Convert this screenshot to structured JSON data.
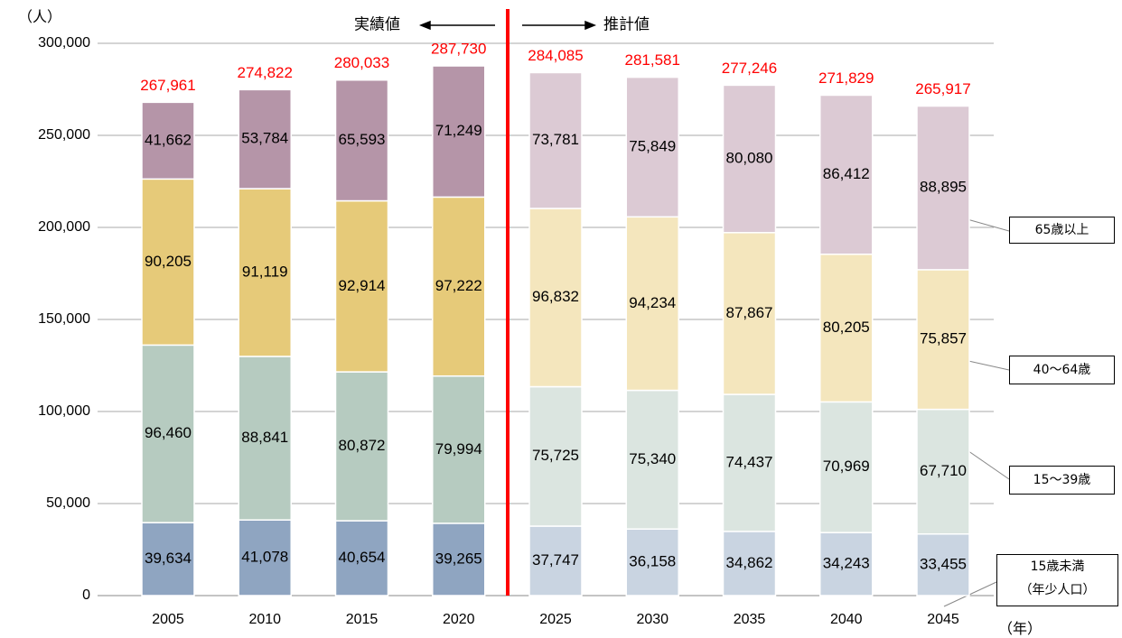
{
  "chart_data": {
    "type": "stacked_bar",
    "ylabel": "（人）",
    "xlabel": "（年）",
    "annotations": [
      "実績値",
      "推計値"
    ],
    "categories": [
      "2005",
      "2010",
      "2015",
      "2020",
      "2025",
      "2030",
      "2035",
      "2040",
      "2045"
    ],
    "series": [
      {
        "name": "15歳未満\n（年少人口）",
        "colors": [
          "#8fa5c1",
          "#8fa5c1",
          "#8fa5c1",
          "#8fa5c1",
          "#c9d4e1",
          "#c9d4e1",
          "#c9d4e1",
          "#c9d4e1",
          "#c9d4e1"
        ],
        "values": [
          39634,
          41078,
          40654,
          39265,
          37747,
          36158,
          34862,
          34243,
          33455
        ],
        "value_labels": [
          "39,634",
          "41,078",
          "40,654",
          "39,265",
          "37,747",
          "36,158",
          "34,862",
          "34,243",
          "33,455"
        ]
      },
      {
        "name": "15～39歳",
        "colors": [
          "#b6cbc0",
          "#b6cbc0",
          "#b6cbc0",
          "#b6cbc0",
          "#dbe5e0",
          "#dbe5e0",
          "#dbe5e0",
          "#dbe5e0",
          "#dbe5e0"
        ],
        "values": [
          96460,
          88841,
          80872,
          79994,
          75725,
          75340,
          74437,
          70969,
          67710
        ],
        "value_labels": [
          "96,460",
          "88,841",
          "80,872",
          "79,994",
          "75,725",
          "75,340",
          "74,437",
          "70,969",
          "67,710"
        ]
      },
      {
        "name": "40～64歳",
        "colors": [
          "#e6ca79",
          "#e6ca79",
          "#e6ca79",
          "#e6ca79",
          "#f4e6bd",
          "#f4e6bd",
          "#f4e6bd",
          "#f4e6bd",
          "#f4e6bd"
        ],
        "values": [
          90205,
          91119,
          92914,
          97222,
          96832,
          94234,
          87867,
          80205,
          75857
        ],
        "value_labels": [
          "90,205",
          "91,119",
          "92,914",
          "97,222",
          "96,832",
          "94,234",
          "87,867",
          "80,205",
          "75,857"
        ]
      },
      {
        "name": "65歳以上",
        "colors": [
          "#b595a8",
          "#b595a8",
          "#b595a8",
          "#b595a8",
          "#dccad4",
          "#dccad4",
          "#dccad4",
          "#dccad4",
          "#dccad4"
        ],
        "values": [
          41662,
          53784,
          65593,
          71249,
          73781,
          75849,
          80080,
          86412,
          88895
        ],
        "value_labels": [
          "41,662",
          "53,784",
          "65,593",
          "71,249",
          "73,781",
          "75,849",
          "80,080",
          "86,412",
          "88,895"
        ]
      }
    ],
    "totals": {
      "color": "#ff0000",
      "values": [
        267961,
        274822,
        280033,
        287730,
        284085,
        281581,
        277246,
        271829,
        265917
      ],
      "value_labels": [
        "267,961",
        "274,822",
        "280,033",
        "287,730",
        "284,085",
        "281,581",
        "277,246",
        "271,829",
        "265,917"
      ]
    },
    "ylim": [
      0,
      300000
    ],
    "yticks": [
      0,
      {
        "value": 50000,
        "label": "50,000"
      },
      {
        "value": 100000,
        "label": "100,000"
      },
      {
        "value": 150000,
        "label": "150,000"
      },
      {
        "value": 200000,
        "label": "200,000"
      },
      {
        "value": 250000,
        "label": "250,000"
      },
      {
        "value": 300000,
        "label": "300,000"
      }
    ],
    "grid": true
  }
}
